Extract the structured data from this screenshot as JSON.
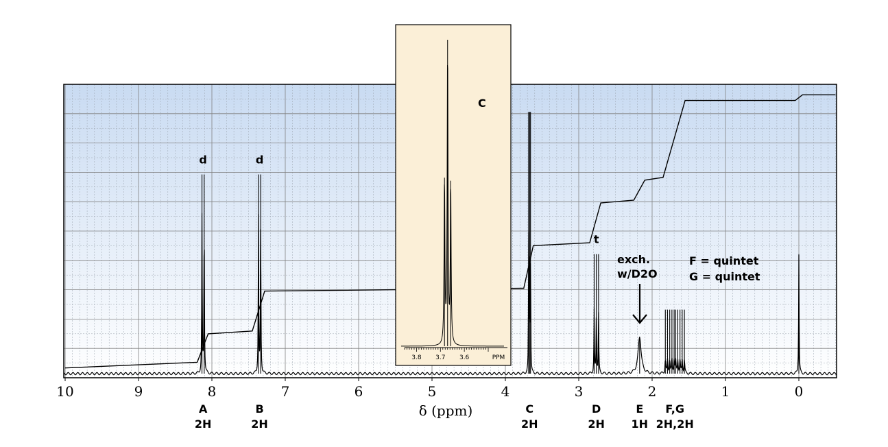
{
  "chart_data": {
    "type": "line",
    "xlabel": "δ (ppm)",
    "xlim": [
      10,
      -0.5
    ],
    "x_reversed": true,
    "grid": true,
    "x_ticks": [
      {
        "value": 10,
        "label": "10"
      },
      {
        "value": 9,
        "label": "9"
      },
      {
        "value": 8,
        "label": "8"
      },
      {
        "value": 7,
        "label": "7"
      },
      {
        "value": 6,
        "label": "6"
      },
      {
        "value": 5,
        "label": "5"
      },
      {
        "value": 4,
        "label": "4"
      },
      {
        "value": 3,
        "label": "3"
      },
      {
        "value": 2,
        "label": "2"
      },
      {
        "value": 1,
        "label": "1"
      },
      {
        "value": 0,
        "label": "0"
      }
    ],
    "peaks": [
      {
        "id": "A",
        "ppm": 8.12,
        "height": 0.7,
        "multiplicity": "d",
        "multiplicity_label": "d",
        "letter": "A",
        "integration": "2H",
        "lines": [
          8.135,
          8.105
        ],
        "width": 0.004
      },
      {
        "id": "B",
        "ppm": 7.35,
        "height": 0.7,
        "multiplicity": "d",
        "multiplicity_label": "d",
        "letter": "B",
        "integration": "2H",
        "lines": [
          7.365,
          7.335
        ],
        "width": 0.004
      },
      {
        "id": "C",
        "ppm": 3.67,
        "height": 0.92,
        "multiplicity": "t",
        "multiplicity_label": "",
        "letter": "C",
        "integration": "2H",
        "lines": [
          3.683,
          3.67,
          3.657
        ],
        "width": 0.003
      },
      {
        "id": "D",
        "ppm": 2.76,
        "height": 0.42,
        "multiplicity": "t",
        "multiplicity_label": "t",
        "letter": "D",
        "integration": "2H",
        "lines": [
          2.79,
          2.76,
          2.73
        ],
        "width": 0.004
      },
      {
        "id": "E",
        "ppm": 2.17,
        "height": 0.13,
        "multiplicity": "broad singlet",
        "multiplicity_label": "",
        "letter": "E",
        "integration": "1H",
        "lines": [
          2.17
        ],
        "width": 0.025
      },
      {
        "id": "F,G",
        "ppm": 1.69,
        "height": 0.3,
        "multiplicity": "quintet",
        "multiplicity_label": "",
        "letter": "F,G",
        "integration": "2H,2H",
        "lines": [
          1.82,
          1.79,
          1.76,
          1.73,
          1.7,
          1.68,
          1.65,
          1.62,
          1.59,
          1.56
        ],
        "width": 0.006
      },
      {
        "id": "TMS",
        "ppm": 0.0,
        "height": 0.42,
        "multiplicity": "singlet",
        "multiplicity_label": "",
        "letter": "",
        "integration": "",
        "lines": [
          0.0
        ],
        "width": 0.004
      }
    ],
    "integral_curve": [
      [
        10.0,
        0.02
      ],
      [
        8.2,
        0.04
      ],
      [
        8.05,
        0.14
      ],
      [
        7.45,
        0.15
      ],
      [
        7.28,
        0.29
      ],
      [
        3.75,
        0.3
      ],
      [
        3.62,
        0.45
      ],
      [
        2.85,
        0.46
      ],
      [
        2.7,
        0.6
      ],
      [
        2.25,
        0.61
      ],
      [
        2.1,
        0.68
      ],
      [
        1.85,
        0.69
      ],
      [
        1.55,
        0.96
      ],
      [
        0.05,
        0.96
      ],
      [
        -0.05,
        0.98
      ],
      [
        -0.5,
        0.98
      ]
    ],
    "annotations": {
      "exch_line1": "exch.",
      "exch_line2": "w/D2O",
      "fg_line1": "F = quintet",
      "fg_line2": "G = quintet"
    },
    "inset": {
      "peak_label": "C",
      "xlim": [
        3.85,
        3.5
      ],
      "ticks": [
        {
          "value": 3.8,
          "label": "3.8"
        },
        {
          "value": 3.7,
          "label": "3.7"
        },
        {
          "value": 3.6,
          "label": "3.6"
        }
      ],
      "unit_label": "PPM",
      "lines": [
        {
          "ppm": 3.683,
          "height": 0.55
        },
        {
          "ppm": 3.67,
          "height": 1.0
        },
        {
          "ppm": 3.657,
          "height": 0.54
        }
      ],
      "width": 0.002
    }
  },
  "colors": {
    "plot_bg_top": "#c9dbf2",
    "plot_bg_bottom": "#ffffff",
    "inset_bg": "#fbefd7",
    "line": "#000000",
    "grid": "#7a7a7a"
  }
}
